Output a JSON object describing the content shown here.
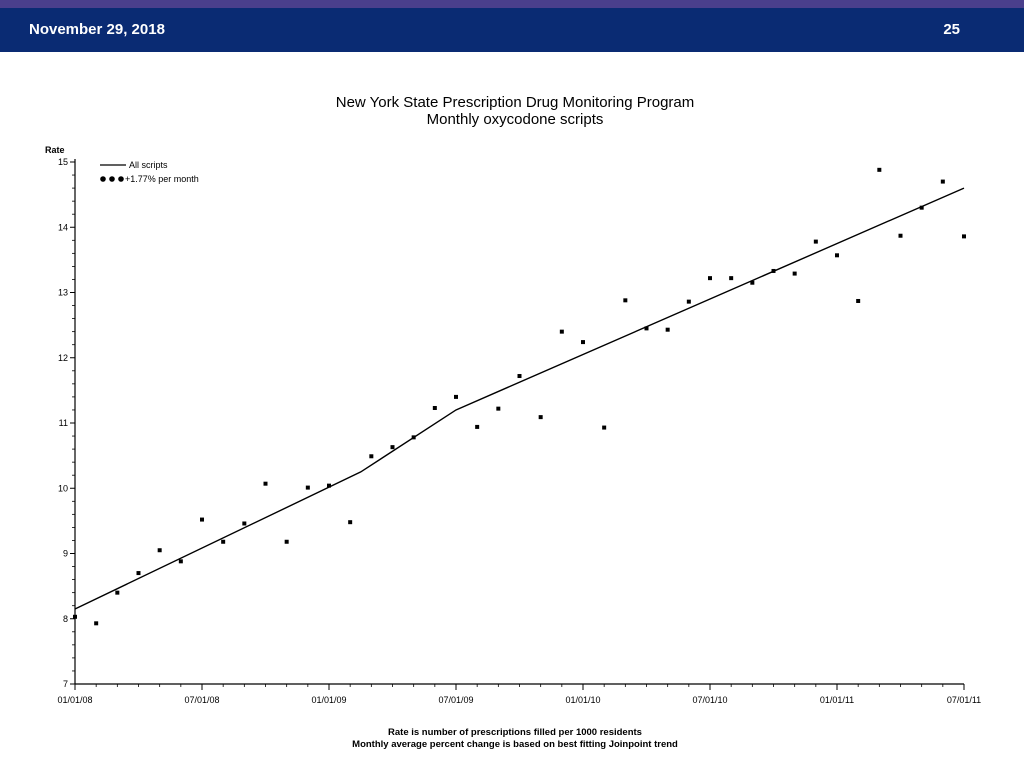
{
  "slide": {
    "date": "November 29, 2018",
    "page_number": "25",
    "colors": {
      "header_bg": "#0a2b73",
      "top_accent": "#4a3f8c",
      "header_text": "#ffffff"
    }
  },
  "chart_data": {
    "type": "scatter",
    "title": "New York State Prescription Drug Monitoring Program",
    "subtitle": "Monthly oxycodone scripts",
    "ylabel": "Rate",
    "xlabel": "",
    "ylim": [
      7,
      15
    ],
    "yticks": [
      7,
      8,
      9,
      10,
      11,
      12,
      13,
      14,
      15
    ],
    "ytick_labels": [
      "7",
      "8",
      "9",
      "10",
      "11",
      "12",
      "13",
      "14",
      "15"
    ],
    "xlim": [
      0,
      42
    ],
    "xticks": [
      0,
      6,
      12,
      18,
      24,
      30,
      36,
      42
    ],
    "xtick_labels": [
      "01/01/08",
      "07/01/08",
      "01/01/09",
      "07/01/09",
      "01/01/10",
      "07/01/10",
      "01/01/11",
      "07/01/11"
    ],
    "legend_position": "top-left",
    "legend": [
      {
        "label": "All scripts",
        "style": "line"
      },
      {
        "label": "+1.77% per month",
        "style": "dots"
      }
    ],
    "grid": false,
    "series": [
      {
        "name": "All scripts",
        "kind": "line",
        "x": [
          0,
          13.5,
          18,
          42
        ],
        "y": [
          8.15,
          10.25,
          11.2,
          14.6
        ]
      },
      {
        "name": "+1.77% per month",
        "kind": "points",
        "x": [
          0,
          1,
          2,
          3,
          4,
          5,
          6,
          7,
          8,
          9,
          10,
          11,
          12,
          13,
          14,
          15,
          16,
          17,
          18,
          19,
          20,
          21,
          22,
          23,
          24,
          25,
          26,
          27,
          28,
          29,
          30,
          31,
          32,
          33,
          34,
          35,
          36,
          37,
          38,
          39,
          40,
          41,
          42
        ],
        "y": [
          8.03,
          7.93,
          8.4,
          8.7,
          9.05,
          8.88,
          9.52,
          9.18,
          9.46,
          10.07,
          9.18,
          10.01,
          10.04,
          9.48,
          10.49,
          10.63,
          10.78,
          11.23,
          11.4,
          10.94,
          11.22,
          11.72,
          11.09,
          12.4,
          12.24,
          10.93,
          12.88,
          12.45,
          12.43,
          12.86,
          13.22,
          13.22,
          13.15,
          13.33,
          13.29,
          13.78,
          13.57,
          12.87,
          14.88,
          13.87,
          14.3,
          14.7,
          13.86
        ]
      }
    ],
    "footnotes": [
      "Rate is number of prescriptions filled per 1000 residents",
      "Monthly average percent change is based on best fitting Joinpoint trend"
    ]
  }
}
